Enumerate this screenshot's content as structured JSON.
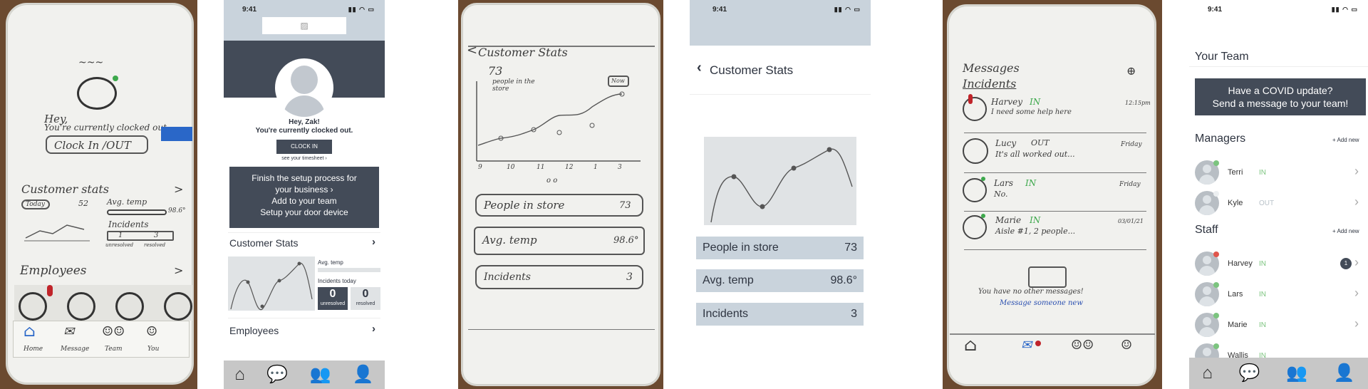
{
  "panel1": {
    "hey": "Hey,",
    "clocked_out": "You're currently clocked out",
    "clock_button": "Clock In /OUT",
    "customer_stats": "Customer stats",
    "today": "Today",
    "people_value": "52",
    "avg_temp": "Avg. temp",
    "temp_value": "98.6°",
    "incidents": "Incidents",
    "unresolved": "1",
    "resolved": "3",
    "unresolved_label": "unresolved",
    "resolved_label": "resolved",
    "employees": "Employees",
    "nav": [
      "Home",
      "Message",
      "Team",
      "You"
    ]
  },
  "panel2": {
    "time": "9:41",
    "greeting": "Hey, Zak!",
    "clocked_out": "You're currently clocked out.",
    "clock_in": "CLOCK IN",
    "timesheet": "see your timesheet ›",
    "setup_lines": [
      "Finish the setup process for",
      "your business ›",
      "Add to your team",
      "Setup your door device"
    ],
    "customer_stats": "Customer Stats",
    "avg_temp": "Avg. temp",
    "incidents_today": "Incidents today",
    "unresolved_count": "0",
    "unresolved_label": "unresolved",
    "resolved_count": "0",
    "resolved_label": "resolved",
    "employees": "Employees"
  },
  "panel3": {
    "title": "Customer Stats",
    "value": "73",
    "caption_line1": "people in the",
    "caption_line2": "store",
    "tooltip": "Now",
    "x_labels": [
      "9",
      "10",
      "11",
      "12",
      "1",
      "3"
    ],
    "rows": [
      {
        "label": "People in store",
        "value": "73"
      },
      {
        "label": "Avg. temp",
        "value": "98.6°"
      },
      {
        "label": "Incidents",
        "value": "3"
      }
    ]
  },
  "panel4": {
    "time": "9:41",
    "back_title": "Customer Stats",
    "rows": [
      {
        "label": "People in store",
        "value": "73"
      },
      {
        "label": "Avg. temp",
        "value": "98.6°"
      },
      {
        "label": "Incidents",
        "value": "3"
      }
    ]
  },
  "panel5": {
    "messages": "Messages",
    "incidents": "Incidents",
    "items": [
      {
        "name": "Harvey",
        "status": "IN",
        "text": "I need some help here",
        "time": "12:15pm"
      },
      {
        "name": "Lucy",
        "status": "OUT",
        "text": "It's all worked out...",
        "time": "Friday"
      },
      {
        "name": "Lars",
        "status": "IN",
        "text": "No.",
        "time": "Friday"
      },
      {
        "name": "Marie",
        "status": "IN",
        "text": "Aisle #1, 2 people...",
        "time": "03/01/21"
      }
    ],
    "empty_line": "You have no other messages!",
    "empty_link": "Message someone new"
  },
  "panel6": {
    "time": "9:41",
    "title": "Your Team",
    "banner_line1": "Have a COVID update?",
    "banner_line2": "Send a message to your team!",
    "managers": "Managers",
    "staff": "Staff",
    "add_new": "+ Add new",
    "manager_list": [
      {
        "name": "Terri",
        "status": "IN"
      },
      {
        "name": "Kyle",
        "status": "OUT"
      }
    ],
    "staff_list": [
      {
        "name": "Harvey",
        "status": "IN",
        "badge": "1"
      },
      {
        "name": "Lars",
        "status": "IN"
      },
      {
        "name": "Marie",
        "status": "IN"
      },
      {
        "name": "Wallis",
        "status": "IN"
      }
    ]
  },
  "colors": {
    "slate": "#434b58",
    "pale_blue": "#c9d3dc",
    "in_green": "#7cc47f",
    "out_gray": "#b9c2c9",
    "alert_red": "#e0564c"
  },
  "icons": [
    "home-icon",
    "chat-icon",
    "team-icon",
    "person-icon",
    "chevron-right-icon",
    "chevron-left-icon",
    "plus-circle-icon",
    "image-placeholder-icon"
  ]
}
